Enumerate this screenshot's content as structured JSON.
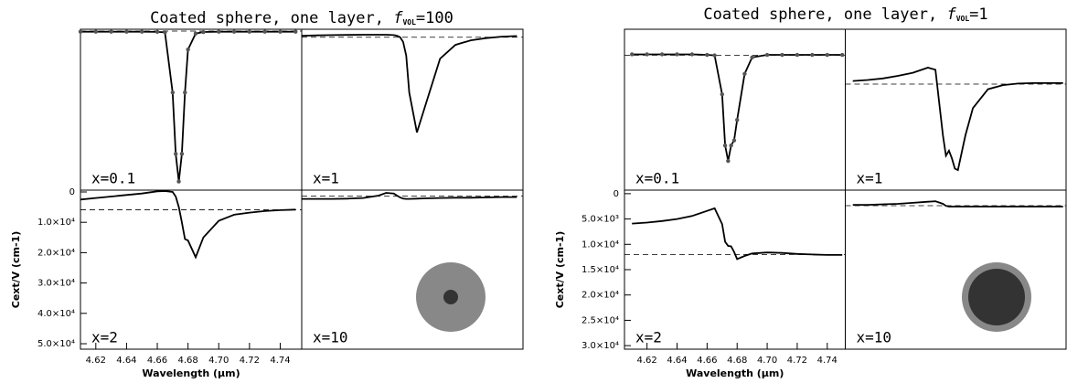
{
  "chart_data": [
    {
      "type": "line",
      "title": "Coated sphere, one layer, ",
      "title_symbol": "f",
      "title_subscript": "VOL",
      "title_value": "=100",
      "xlabel": "Wavelength (μm)",
      "ylabel": "Cext/V (cm-1)",
      "x": [
        4.61,
        4.62,
        4.63,
        4.64,
        4.65,
        4.66,
        4.665,
        4.67,
        4.672,
        4.674,
        4.676,
        4.678,
        4.68,
        4.685,
        4.69,
        4.7,
        4.71,
        4.72,
        4.73,
        4.74,
        4.75
      ],
      "xlim": [
        4.61,
        4.754
      ],
      "xticks": [
        4.62,
        4.64,
        4.66,
        4.68,
        {
          "value": 4.7,
          "label": "4.70"
        },
        4.72,
        4.74
      ],
      "ylim": [
        51800,
        -600
      ],
      "yticks": [
        0,
        {
          "value": 10000,
          "label": "1.0×10⁴"
        },
        {
          "value": 20000,
          "label": "2.0×10⁴"
        },
        {
          "value": 30000,
          "label": "3.0×10⁴"
        },
        {
          "value": 40000,
          "label": "4.0×10⁴"
        },
        {
          "value": 50000,
          "label": "5.0×10⁴"
        }
      ],
      "color": "#000000",
      "marker_color": "#555555",
      "inset": {
        "outer_color": "#888888",
        "inner_color": "#333333"
      },
      "panels": [
        {
          "label": "x=0.1",
          "markers": true,
          "reference": 0,
          "values": [
            200,
            200,
            200,
            200,
            200,
            250,
            400,
            20000,
            40000,
            49000,
            40000,
            20000,
            6000,
            800,
            300,
            200,
            200,
            200,
            200,
            200,
            200
          ]
        },
        {
          "label": "x=1",
          "markers": false,
          "reference": 2000,
          "values": [
            1500,
            1400,
            1300,
            1250,
            1200,
            1200,
            1200,
            1300,
            1500,
            2000,
            3500,
            8000,
            20000,
            33000,
            25000,
            9000,
            4500,
            3000,
            2300,
            1800,
            1600
          ]
        },
        {
          "label": "x=2",
          "markers": false,
          "reference": 5900,
          "values": [
            2500,
            2000,
            1500,
            1000,
            500,
            -200,
            -300,
            0,
            1500,
            5000,
            10000,
            15500,
            16000,
            21500,
            15000,
            9500,
            7500,
            6800,
            6300,
            6000,
            5800
          ]
        },
        {
          "label": "x=10",
          "markers": false,
          "reference": 1400,
          "values": [
            2300,
            2300,
            2300,
            2200,
            2000,
            1200,
            300,
            500,
            1200,
            1800,
            2200,
            2300,
            2300,
            2200,
            2100,
            2000,
            1900,
            1900,
            1800,
            1700,
            1700
          ]
        }
      ]
    },
    {
      "type": "line",
      "title": "Coated sphere, one layer, ",
      "title_symbol": "f",
      "title_subscript": "VOL",
      "title_value": "=1",
      "xlabel": "Wavelength (μm)",
      "ylabel": "Cext/V (cm-1)",
      "x": [
        4.61,
        4.62,
        4.63,
        4.64,
        4.65,
        4.66,
        4.665,
        4.67,
        4.672,
        4.674,
        4.676,
        4.678,
        4.68,
        4.685,
        4.69,
        4.7,
        4.71,
        4.72,
        4.73,
        4.74,
        4.75
      ],
      "xlim": [
        4.605,
        4.752
      ],
      "xticks": [
        4.62,
        4.64,
        4.66,
        4.68,
        {
          "value": 4.7,
          "label": "4.70"
        },
        4.72,
        4.74
      ],
      "ylim": [
        30700,
        -700
      ],
      "yticks": [
        0,
        {
          "value": 5000,
          "label": "5.0×10³"
        },
        {
          "value": 10000,
          "label": "1.0×10⁴"
        },
        {
          "value": 15000,
          "label": "1.5×10⁴"
        },
        {
          "value": 20000,
          "label": "2.0×10⁴"
        },
        {
          "value": 25000,
          "label": "2.5×10⁴"
        },
        {
          "value": 30000,
          "label": "3.0×10⁴"
        }
      ],
      "color": "#000000",
      "marker_color": "#555555",
      "inset": {
        "outer_color": "#888888",
        "inner_color": "#333333"
      },
      "panels": [
        {
          "label": "x=0.1",
          "markers": true,
          "reference": 4360,
          "values": [
            4200,
            4200,
            4200,
            4200,
            4200,
            4300,
            4400,
            12000,
            22000,
            25000,
            22000,
            21000,
            17000,
            8000,
            4800,
            4300,
            4300,
            4300,
            4300,
            4300,
            4300
          ]
        },
        {
          "label": "x=1",
          "markers": false,
          "reference": 10000,
          "values": [
            9400,
            9200,
            8900,
            8400,
            7800,
            6800,
            7200,
            20000,
            24000,
            23000,
            24500,
            26500,
            26800,
            20000,
            14700,
            11000,
            10200,
            9900,
            9800,
            9800,
            9800
          ]
        },
        {
          "label": "x=2",
          "markers": false,
          "reference": 12000,
          "values": [
            5900,
            5700,
            5400,
            5000,
            4400,
            3400,
            2900,
            6000,
            9500,
            10300,
            10400,
            11500,
            12900,
            12300,
            11800,
            11600,
            11700,
            11900,
            12000,
            12100,
            12100
          ]
        },
        {
          "label": "x=10",
          "markers": false,
          "reference": 2370,
          "values": [
            2200,
            2200,
            2100,
            2000,
            1800,
            1600,
            1500,
            2000,
            2400,
            2550,
            2550,
            2550,
            2550,
            2550,
            2550,
            2550,
            2550,
            2550,
            2550,
            2550,
            2550
          ]
        }
      ]
    }
  ]
}
